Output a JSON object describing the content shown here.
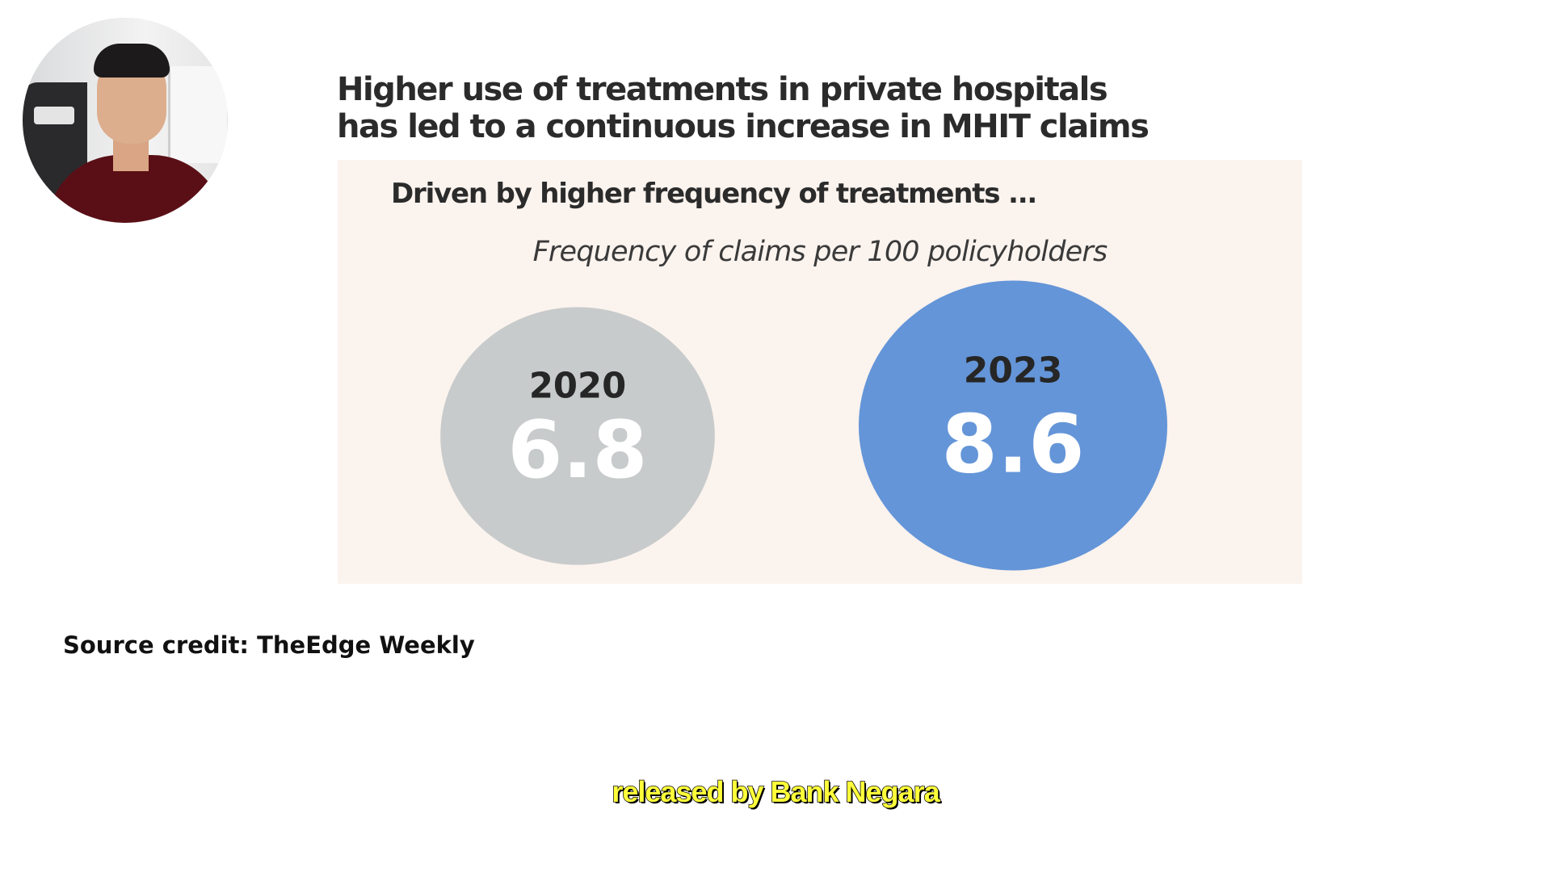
{
  "slide": {
    "title_line1": "Higher use of treatments in private hospitals",
    "title_line2": "has led to a continuous increase in MHIT claims"
  },
  "panel": {
    "heading": "Driven by higher frequency of treatments ...",
    "subtitle": "Frequency of claims per 100 policyholders"
  },
  "chart_data": {
    "type": "bubble",
    "title": "Driven by higher frequency of treatments ...",
    "subtitle": "Frequency of claims per 100 policyholders",
    "categories": [
      "2020",
      "2023"
    ],
    "values": [
      6.8,
      8.6
    ],
    "colors": [
      "#c8cbcb",
      "#6495d8"
    ]
  },
  "credit": "Source credit: TheEdge Weekly",
  "caption": "released by Bank Negara"
}
